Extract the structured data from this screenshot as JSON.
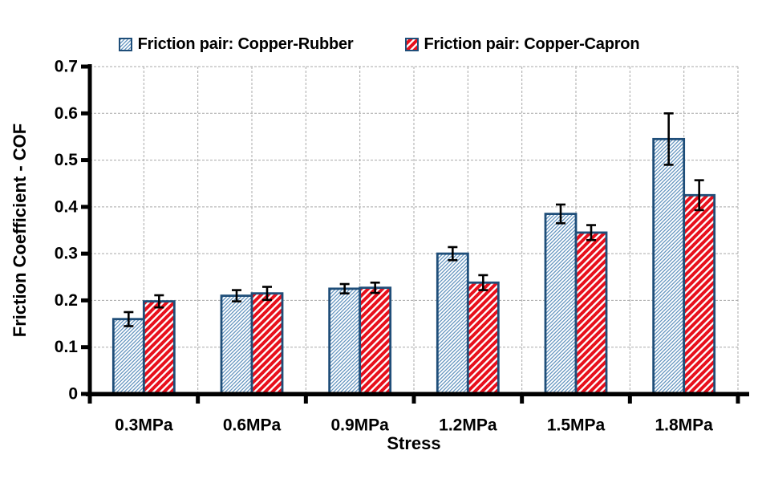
{
  "figure": {
    "background": "#FFFFFF"
  },
  "axes": {
    "y_title": "Friction Coefficient - COF",
    "x_title": "Stress",
    "y_ticks": [
      "0",
      "0.1",
      "0.2",
      "0.3",
      "0.4",
      "0.5",
      "0.6",
      "0.7"
    ]
  },
  "colors": {
    "bar_border": "#1F4E79",
    "rubber_hatch": "#6394BF",
    "capron_hatch": "#E8101C",
    "gridline": "#A8A8A8",
    "axis": "#000000",
    "error_bar": "#000000",
    "text": "#000000"
  },
  "chart_data": {
    "type": "bar",
    "title": "",
    "xlabel": "Stress",
    "ylabel": "Friction Coefficient - COF",
    "categories": [
      "0.3MPa",
      "0.6MPa",
      "0.9MPa",
      "1.2MPa",
      "1.5MPa",
      "1.8MPa"
    ],
    "series": [
      {
        "name": "Friction pair: Copper-Rubber",
        "values": [
          0.16,
          0.21,
          0.225,
          0.3,
          0.385,
          0.545
        ],
        "error_bars": [
          0.015,
          0.012,
          0.01,
          0.014,
          0.02,
          0.055
        ],
        "fill_pattern": "thin-diagonal-hatch",
        "color": "#6394BF",
        "border_color": "#1F4E79"
      },
      {
        "name": "Friction pair: Copper-Capron",
        "values": [
          0.198,
          0.215,
          0.227,
          0.238,
          0.345,
          0.425
        ],
        "error_bars": [
          0.013,
          0.014,
          0.011,
          0.016,
          0.016,
          0.032
        ],
        "fill_pattern": "wide-diagonal-hatch",
        "color": "#E8101C",
        "border_color": "#1F4E79"
      }
    ],
    "ylim": [
      0,
      0.7
    ],
    "y_tick_step": 0.1,
    "grid": {
      "horizontal": true,
      "vertical": true,
      "style": "dashed",
      "color": "#A8A8A8"
    },
    "legend_position": "top-center",
    "error_bar_caps": true
  }
}
